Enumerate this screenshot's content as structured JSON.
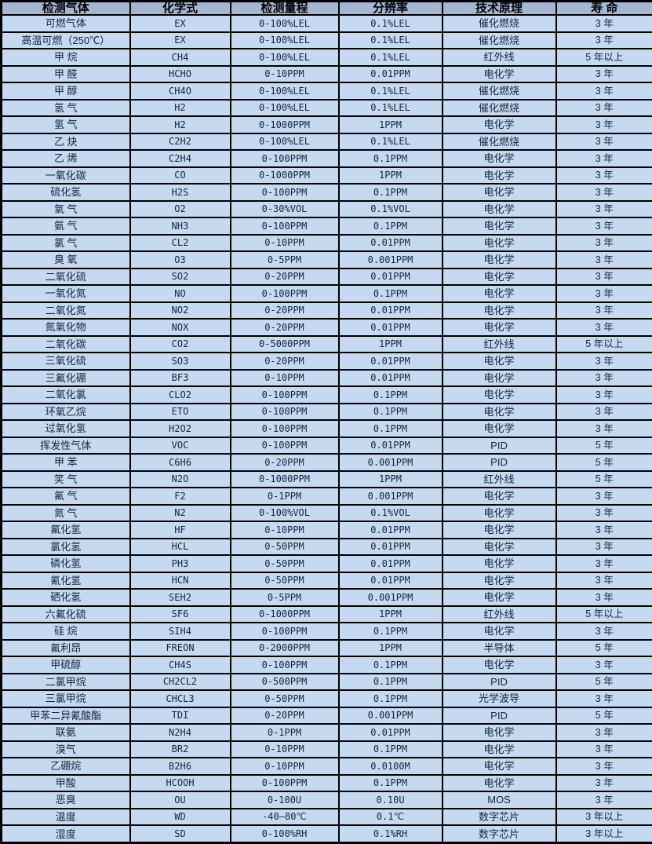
{
  "colors": {
    "header_bg": "#a4b6d2",
    "row_bg": "#c5d9f1",
    "border": "#000000",
    "text": "#17253f"
  },
  "table": {
    "headers": [
      "检测气体",
      "化学式",
      "检测量程",
      "分辨率",
      "技术原理",
      "寿 命"
    ],
    "rows": [
      [
        "可燃气体",
        "EX",
        "0-100%LEL",
        "0.1%LEL",
        "催化燃烧",
        "3 年"
      ],
      [
        "高温可燃（250℃）",
        "EX",
        "0-100%LEL",
        "0.1%LEL",
        "催化燃烧",
        "3 年"
      ],
      [
        "甲 烷",
        "CH4",
        "0-100%LEL",
        "0.1%LEL",
        "红外线",
        "5 年以上"
      ],
      [
        "甲 醛",
        "HCHO",
        "0-10PPM",
        "0.01PPM",
        "电化学",
        "3 年"
      ],
      [
        "甲 醇",
        "CH4O",
        "0-100%LEL",
        "0.1%LEL",
        "催化燃烧",
        "3 年"
      ],
      [
        "氢 气",
        "H2",
        "0-100%LEL",
        "0.1%LEL",
        "催化燃烧",
        "3 年"
      ],
      [
        "氢 气",
        "H2",
        "0-1000PPM",
        "1PPM",
        "电化学",
        "3 年"
      ],
      [
        "乙 炔",
        "C2H2",
        "0-100%LEL",
        "0.1%LEL",
        "催化燃烧",
        "3 年"
      ],
      [
        "乙 烯",
        "C2H4",
        "0-100PPM",
        "0.1PPM",
        "电化学",
        "3 年"
      ],
      [
        "一氧化碳",
        "CO",
        "0-1000PPM",
        "1PPM",
        "电化学",
        "3 年"
      ],
      [
        "硫化氢",
        "H2S",
        "0-100PPM",
        "0.1PPM",
        "电化学",
        "3 年"
      ],
      [
        "氧 气",
        "O2",
        "0-30%VOL",
        "0.1%VOL",
        "电化学",
        "3 年"
      ],
      [
        "氨 气",
        "NH3",
        "0-100PPM",
        "0.1PPM",
        "电化学",
        "3 年"
      ],
      [
        "氯 气",
        "CL2",
        "0-10PPM",
        "0.01PPM",
        "电化学",
        "3 年"
      ],
      [
        "臭 氧",
        "O3",
        "0-5PPM",
        "0.001PPM",
        "电化学",
        "3 年"
      ],
      [
        "二氧化硫",
        "SO2",
        "0-20PPM",
        "0.01PPM",
        "电化学",
        "3 年"
      ],
      [
        "一氧化氮",
        "NO",
        "0-100PPM",
        "0.1PPM",
        "电化学",
        "3 年"
      ],
      [
        "二氧化氮",
        "NO2",
        "0-20PPM",
        "0.01PPM",
        "电化学",
        "3 年"
      ],
      [
        "氮氧化物",
        "NOX",
        "0-20PPM",
        "0.01PPM",
        "电化学",
        "3 年"
      ],
      [
        "二氧化碳",
        "CO2",
        "0-5000PPM",
        "1PPM",
        "红外线",
        "5 年以上"
      ],
      [
        "三氧化硫",
        "SO3",
        "0-20PPM",
        "0.01PPM",
        "电化学",
        "3 年"
      ],
      [
        "三氟化硼",
        "BF3",
        "0-10PPM",
        "0.01PPM",
        "电化学",
        "3 年"
      ],
      [
        "二氧化氯",
        "CLO2",
        "0-100PPM",
        "0.1PPM",
        "电化学",
        "3 年"
      ],
      [
        "环氧乙烷",
        "ETO",
        "0-100PPM",
        "0.1PPM",
        "电化学",
        "3 年"
      ],
      [
        "过氧化氢",
        "H2O2",
        "0-100PPM",
        "0.1PPM",
        "电化学",
        "3 年"
      ],
      [
        "挥发性气体",
        "VOC",
        "0-100PPM",
        "0.01PPM",
        "PID",
        "5 年"
      ],
      [
        "甲 苯",
        "C6H6",
        "0-20PPM",
        "0.001PPM",
        "PID",
        "5 年"
      ],
      [
        "笑 气",
        "N2O",
        "0-1000PPM",
        "1PPM",
        "红外线",
        "5 年"
      ],
      [
        "氟 气",
        "F2",
        "0-1PPM",
        "0.001PPM",
        "电化学",
        "3 年"
      ],
      [
        "氮 气",
        "N2",
        "0-100%VOL",
        "0.1%VOL",
        "电化学",
        "3 年"
      ],
      [
        "氟化氢",
        "HF",
        "0-10PPM",
        "0.01PPM",
        "电化学",
        "3 年"
      ],
      [
        "氯化氢",
        "HCL",
        "0-50PPM",
        "0.01PPM",
        "电化学",
        "3 年"
      ],
      [
        "磷化氢",
        "PH3",
        "0-50PPM",
        "0.01PPM",
        "电化学",
        "3 年"
      ],
      [
        "氰化氢",
        "HCN",
        "0-50PPM",
        "0.01PPM",
        "电化学",
        "3 年"
      ],
      [
        "硒化氢",
        "SEH2",
        "0-5PPM",
        "0.001PPM",
        "电化学",
        "3 年"
      ],
      [
        "六氟化硫",
        "SF6",
        "0-1000PPM",
        "1PPM",
        "红外线",
        "5 年以上"
      ],
      [
        "硅 烷",
        "SIH4",
        "0-100PPM",
        "0.1PPM",
        "电化学",
        "3 年"
      ],
      [
        "氟利昂",
        "FREON",
        "0-2000PPM",
        "1PPM",
        "半导体",
        "5 年"
      ],
      [
        "甲硫醇",
        "CH4S",
        "0-100PPM",
        "0.1PPM",
        "电化学",
        "3 年"
      ],
      [
        "二氯甲烷",
        "CH2CL2",
        "0-500PPM",
        "0.1PPM",
        "PID",
        "5 年"
      ],
      [
        "三氯甲烷",
        "CHCL3",
        "0-50PPM",
        "0.1PPM",
        "光学波导",
        "3 年"
      ],
      [
        "甲苯二异氰酸酯",
        "TDI",
        "0-20PPM",
        "0.001PPM",
        "PID",
        "5 年"
      ],
      [
        "联氨",
        "N2H4",
        "0-1PPM",
        "0.01PPM",
        "电化学",
        "3 年"
      ],
      [
        "溴气",
        "BR2",
        "0-10PPM",
        "0.1PPM",
        "电化学",
        "3 年"
      ],
      [
        "乙硼烷",
        "B2H6",
        "0-10PPM",
        "0.0100M",
        "电化学",
        "3 年"
      ],
      [
        "甲酸",
        "HCOOH",
        "0-100PPM",
        "0.1PPM",
        "电化学",
        "3 年"
      ],
      [
        "恶臭",
        "OU",
        "0-100U",
        "0.10U",
        "MOS",
        "3 年"
      ],
      [
        "温度",
        "WD",
        "-40—80℃",
        "0.1℃",
        "数字芯片",
        "3 年以上"
      ],
      [
        "湿度",
        "SD",
        "0-100%RH",
        "0.1%RH",
        "数字芯片",
        "3 年以上"
      ]
    ]
  }
}
